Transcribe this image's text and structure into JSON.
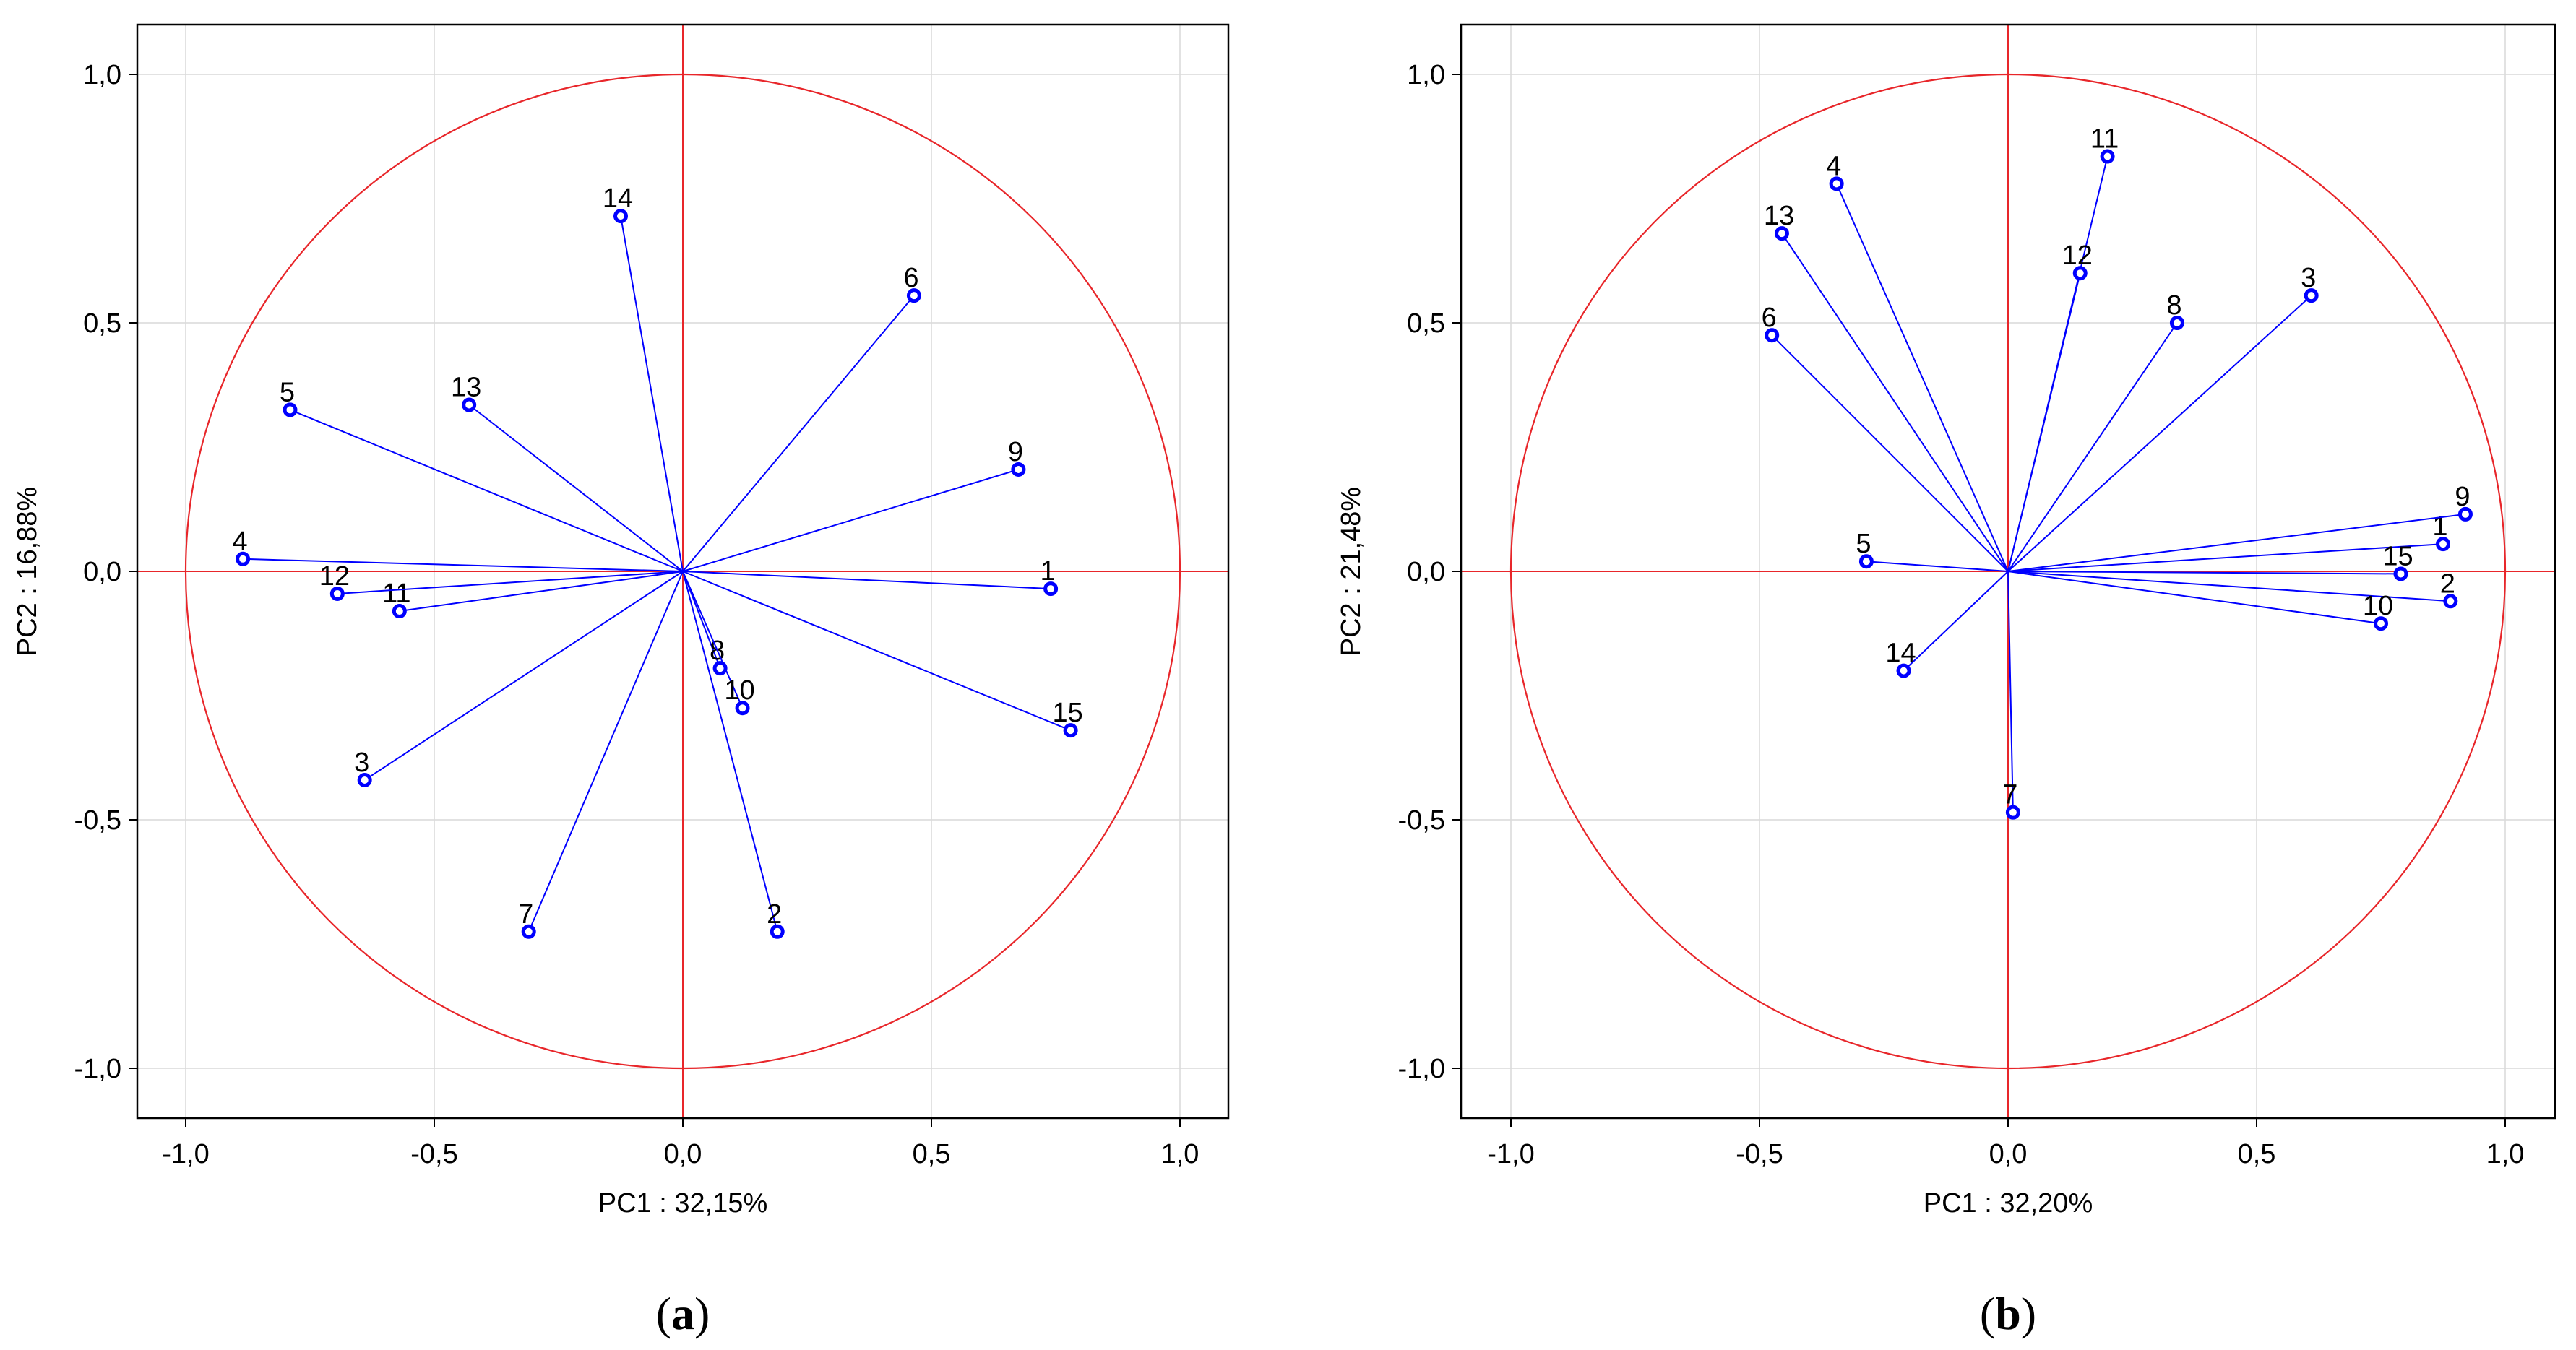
{
  "chart_data": [
    {
      "type": "scatter",
      "subtype": "pca-correlation-circle",
      "panel_label": "a",
      "xlabel": "PC1 : 32,15%",
      "ylabel": "PC2 : 16,88%",
      "xlim": [
        -1.1,
        1.1
      ],
      "ylim": [
        -1.1,
        1.1
      ],
      "xticks": [
        "-1,0",
        "-0,5",
        "0,0",
        "0,5",
        "1,0"
      ],
      "xtick_values": [
        -1.0,
        -0.5,
        0.0,
        0.5,
        1.0
      ],
      "yticks": [
        "1,0",
        "0,5",
        "0,0",
        "-0,5",
        "-1,0"
      ],
      "ytick_values": [
        1.0,
        0.5,
        0.0,
        -0.5,
        -1.0
      ],
      "grid": true,
      "unit_circle": true,
      "colors": {
        "vector": "#0000ff",
        "circle": "#e8262a",
        "grid": "#d9d9d9"
      },
      "points": [
        {
          "label": "1",
          "x": 0.74,
          "y": -0.035
        },
        {
          "label": "2",
          "x": 0.19,
          "y": -0.725
        },
        {
          "label": "3",
          "x": -0.64,
          "y": -0.42
        },
        {
          "label": "4",
          "x": -0.885,
          "y": 0.025
        },
        {
          "label": "5",
          "x": -0.79,
          "y": 0.325
        },
        {
          "label": "6",
          "x": 0.465,
          "y": 0.555
        },
        {
          "label": "7",
          "x": -0.31,
          "y": -0.725
        },
        {
          "label": "8",
          "x": 0.075,
          "y": -0.195
        },
        {
          "label": "9",
          "x": 0.675,
          "y": 0.205
        },
        {
          "label": "10",
          "x": 0.12,
          "y": -0.275
        },
        {
          "label": "11",
          "x": -0.57,
          "y": -0.08
        },
        {
          "label": "12",
          "x": -0.695,
          "y": -0.045
        },
        {
          "label": "13",
          "x": -0.43,
          "y": 0.335
        },
        {
          "label": "14",
          "x": -0.125,
          "y": 0.715
        },
        {
          "label": "15",
          "x": 0.78,
          "y": -0.32
        }
      ]
    },
    {
      "type": "scatter",
      "subtype": "pca-correlation-circle",
      "panel_label": "b",
      "xlabel": "PC1 : 32,20%",
      "ylabel": "PC2 : 21,48%",
      "xlim": [
        -1.1,
        1.1
      ],
      "ylim": [
        -1.1,
        1.1
      ],
      "xticks": [
        "-1,0",
        "-0,5",
        "0,0",
        "0,5",
        "1,0"
      ],
      "xtick_values": [
        -1.0,
        -0.5,
        0.0,
        0.5,
        1.0
      ],
      "yticks": [
        "1,0",
        "0,5",
        "0,0",
        "-0,5",
        "-1,0"
      ],
      "ytick_values": [
        1.0,
        0.5,
        0.0,
        -0.5,
        -1.0
      ],
      "grid": true,
      "unit_circle": true,
      "colors": {
        "vector": "#0000ff",
        "circle": "#e8262a",
        "grid": "#d9d9d9"
      },
      "points": [
        {
          "label": "1",
          "x": 0.875,
          "y": 0.055
        },
        {
          "label": "2",
          "x": 0.89,
          "y": -0.06
        },
        {
          "label": "3",
          "x": 0.61,
          "y": 0.555
        },
        {
          "label": "4",
          "x": -0.345,
          "y": 0.78
        },
        {
          "label": "5",
          "x": -0.285,
          "y": 0.02
        },
        {
          "label": "6",
          "x": -0.475,
          "y": 0.475
        },
        {
          "label": "7",
          "x": 0.01,
          "y": -0.485
        },
        {
          "label": "8",
          "x": 0.34,
          "y": 0.5
        },
        {
          "label": "9",
          "x": 0.92,
          "y": 0.115
        },
        {
          "label": "10",
          "x": 0.75,
          "y": -0.105
        },
        {
          "label": "11",
          "x": 0.2,
          "y": 0.835
        },
        {
          "label": "12",
          "x": 0.145,
          "y": 0.6
        },
        {
          "label": "13",
          "x": -0.455,
          "y": 0.68
        },
        {
          "label": "14",
          "x": -0.21,
          "y": -0.2
        },
        {
          "label": "15",
          "x": 0.79,
          "y": -0.005
        }
      ]
    }
  ]
}
